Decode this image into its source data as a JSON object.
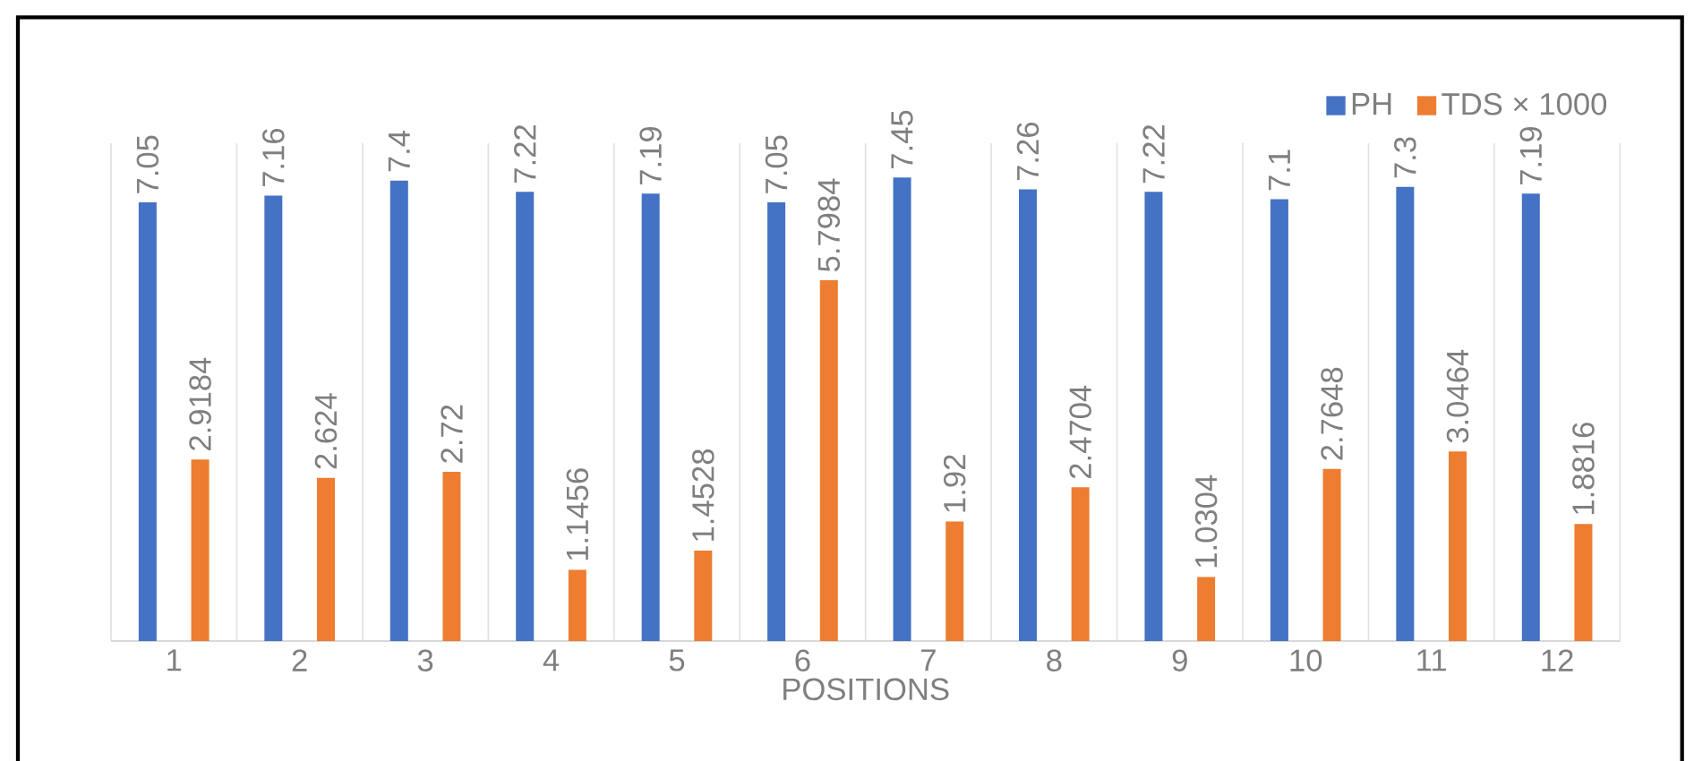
{
  "chart_data": {
    "type": "bar",
    "xlabel": "POSITIONS",
    "categories": [
      "1",
      "2",
      "3",
      "4",
      "5",
      "6",
      "7",
      "8",
      "9",
      "10",
      "11",
      "12"
    ],
    "series": [
      {
        "name": "PH",
        "color": "#4472c4",
        "values": [
          7.05,
          7.16,
          7.4,
          7.22,
          7.19,
          7.05,
          7.45,
          7.26,
          7.22,
          7.1,
          7.3,
          7.19
        ]
      },
      {
        "name": "TDS × 1000",
        "color": "#ed7d31",
        "values": [
          2.9184,
          2.624,
          2.72,
          1.1456,
          1.4528,
          5.7984,
          1.92,
          2.4704,
          1.0304,
          2.7648,
          3.0464,
          1.8816
        ]
      }
    ],
    "ylim": [
      0,
      8
    ],
    "data_labels": true,
    "grid": "x",
    "legend": "top right",
    "tick_labels": "x"
  }
}
